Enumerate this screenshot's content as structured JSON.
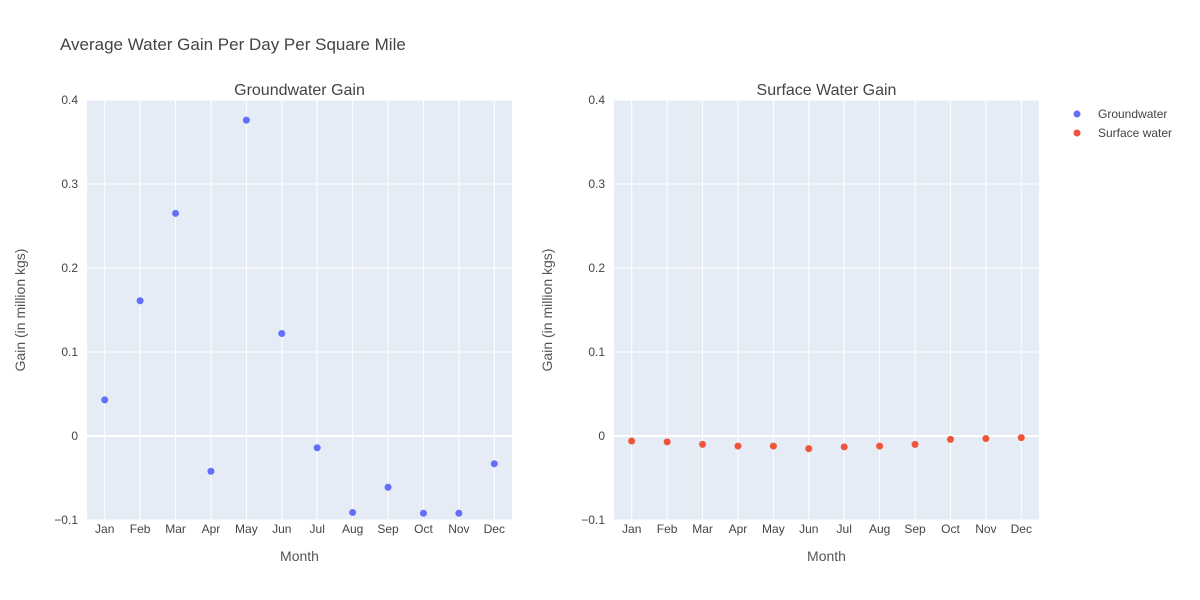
{
  "chart_data": {
    "type": "scatter",
    "title": "Average Water Gain Per Day Per Square Mile",
    "legend": {
      "placement": "top-right",
      "entries": [
        "Groundwater",
        "Surface water"
      ]
    },
    "categories": [
      "Jan",
      "Feb",
      "Mar",
      "Apr",
      "May",
      "Jun",
      "Jul",
      "Aug",
      "Sep",
      "Oct",
      "Nov",
      "Dec"
    ],
    "ylim": [
      -0.1,
      0.4
    ],
    "yticks": [
      -0.1,
      0,
      0.1,
      0.2,
      0.3,
      0.4
    ],
    "ytick_labels": [
      "−0.1",
      "0",
      "0.1",
      "0.2",
      "0.3",
      "0.4"
    ],
    "grid": true,
    "subplots": [
      {
        "title": "Groundwater Gain",
        "xlabel": "Month",
        "ylabel": "Gain (in million kgs)",
        "series": [
          {
            "name": "Groundwater",
            "color": "#636efa",
            "values": [
              0.043,
              0.161,
              0.265,
              -0.042,
              0.376,
              0.122,
              -0.014,
              -0.091,
              -0.061,
              -0.092,
              -0.092,
              -0.033
            ]
          }
        ]
      },
      {
        "title": "Surface Water Gain",
        "xlabel": "Month",
        "ylabel": "Gain (in million kgs)",
        "series": [
          {
            "name": "Surface water",
            "color": "#ef553b",
            "values": [
              -0.006,
              -0.007,
              -0.01,
              -0.012,
              -0.012,
              -0.015,
              -0.013,
              -0.012,
              -0.01,
              -0.004,
              -0.003,
              -0.002
            ]
          }
        ]
      }
    ]
  }
}
